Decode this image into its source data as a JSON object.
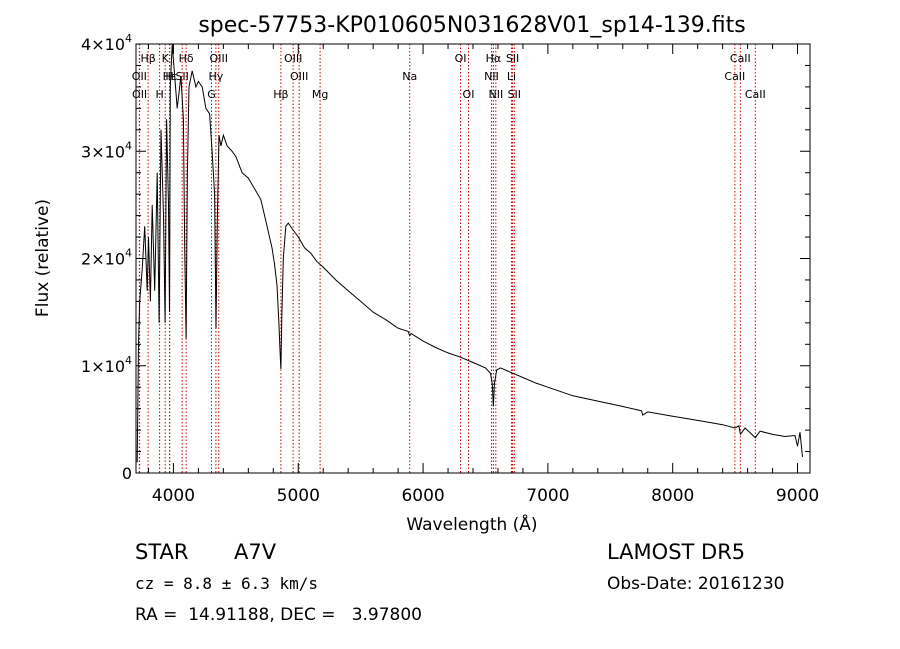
{
  "chart_data": {
    "type": "line",
    "title": "spec-57753-KP010605N031628V01_sp14-139.fits",
    "xlabel": "Wavelength (Å)",
    "ylabel": "Flux (relative)",
    "xlim": [
      3700,
      9100
    ],
    "ylim": [
      0,
      40000
    ],
    "x_ticks": [
      {
        "value": 4000,
        "label": "4000"
      },
      {
        "value": 5000,
        "label": "5000"
      },
      {
        "value": 6000,
        "label": "6000"
      },
      {
        "value": 7000,
        "label": "7000"
      },
      {
        "value": 8000,
        "label": "8000"
      },
      {
        "value": 9000,
        "label": "9000"
      }
    ],
    "y_ticks": [
      {
        "value": 0,
        "base": "0",
        "exp": ""
      },
      {
        "value": 10000,
        "base": "1×10",
        "exp": "4"
      },
      {
        "value": 20000,
        "base": "2×10",
        "exp": "4"
      },
      {
        "value": 30000,
        "base": "3×10",
        "exp": "4"
      },
      {
        "value": 40000,
        "base": "4×10",
        "exp": "4"
      }
    ],
    "series": [
      {
        "line_color": "#000000",
        "x": [
          3710,
          3720,
          3730,
          3750,
          3770,
          3790,
          3800,
          3815,
          3830,
          3850,
          3870,
          3885,
          3900,
          3920,
          3933,
          3945,
          3960,
          3968,
          3975,
          3990,
          4010,
          4030,
          4060,
          4080,
          4090,
          4101,
          4112,
          4125,
          4150,
          4180,
          4200,
          4230,
          4260,
          4290,
          4310,
          4330,
          4341,
          4352,
          4365,
          4380,
          4400,
          4430,
          4470,
          4500,
          4550,
          4600,
          4650,
          4700,
          4730,
          4760,
          4790,
          4810,
          4830,
          4845,
          4855,
          4861,
          4868,
          4880,
          4900,
          4920,
          4950,
          5000,
          5050,
          5100,
          5150,
          5200,
          5300,
          5400,
          5500,
          5600,
          5700,
          5800,
          5880,
          5893,
          5905,
          6000,
          6100,
          6200,
          6300,
          6400,
          6500,
          6540,
          6555,
          6563,
          6572,
          6590,
          6620,
          6700,
          6800,
          6900,
          7000,
          7200,
          7400,
          7600,
          7750,
          7760,
          7800,
          8000,
          8200,
          8400,
          8498,
          8530,
          8542,
          8580,
          8662,
          8700,
          8800,
          8900,
          8980,
          9000,
          9020,
          9040
        ],
        "y": [
          1000,
          12000,
          16000,
          19000,
          23000,
          17000,
          22000,
          16000,
          25000,
          17000,
          28000,
          14000,
          32000,
          24000,
          14000,
          33000,
          25000,
          15000,
          36000,
          40000,
          37000,
          34000,
          37000,
          33000,
          21000,
          12500,
          28000,
          36000,
          37500,
          36000,
          36500,
          36000,
          34000,
          33500,
          30000,
          26000,
          13500,
          24000,
          31500,
          30500,
          31500,
          30500,
          30000,
          29500,
          28000,
          27500,
          26500,
          25500,
          24000,
          22500,
          21000,
          19500,
          17500,
          14000,
          11000,
          9700,
          14500,
          20000,
          23000,
          23300,
          22800,
          22000,
          21000,
          20500,
          19700,
          19200,
          18000,
          17000,
          16000,
          15000,
          14300,
          13500,
          13200,
          12800,
          13000,
          12300,
          11700,
          11200,
          10800,
          10300,
          9800,
          9300,
          8300,
          6200,
          8400,
          9600,
          9800,
          9400,
          8900,
          8400,
          8000,
          7200,
          6700,
          6200,
          5800,
          5400,
          5700,
          5300,
          4900,
          4500,
          4200,
          4400,
          3600,
          4200,
          3300,
          3900,
          3600,
          3400,
          3500,
          2500,
          3800,
          1500
        ]
      }
    ],
    "line_labels": [
      {
        "label": "Hβ",
        "x": 3797,
        "row": 1
      },
      {
        "label": "OII",
        "x": 3727,
        "row": 2
      },
      {
        "label": "OII",
        "x": 3729,
        "row": 3
      },
      {
        "label": "K",
        "x": 3934,
        "row": 1
      },
      {
        "label": "H",
        "x": 3969,
        "row": 2
      },
      {
        "label": "Hε",
        "x": 3970,
        "row": 2
      },
      {
        "label": "SII",
        "x": 4070,
        "row": 2
      },
      {
        "label": "Hδ",
        "x": 4102,
        "row": 1
      },
      {
        "label": "H",
        "x": 3889,
        "row": 3
      },
      {
        "label": "OIII",
        "x": 4363,
        "row": 1
      },
      {
        "label": "Hγ",
        "x": 4340,
        "row": 2
      },
      {
        "label": "G",
        "x": 4305,
        "row": 3
      },
      {
        "label": "OIII",
        "x": 4959,
        "row": 1
      },
      {
        "label": "OIII",
        "x": 5007,
        "row": 2
      },
      {
        "label": "Hβ",
        "x": 4861,
        "row": 3
      },
      {
        "label": "Mg",
        "x": 5175,
        "row": 3
      },
      {
        "label": "Na",
        "x": 5893,
        "row": 2
      },
      {
        "label": "OI",
        "x": 6300,
        "row": 1
      },
      {
        "label": "OI",
        "x": 6364,
        "row": 3
      },
      {
        "label": "Hα",
        "x": 6563,
        "row": 1
      },
      {
        "label": "SII",
        "x": 6717,
        "row": 1
      },
      {
        "label": "NII",
        "x": 6548,
        "row": 2
      },
      {
        "label": "Li",
        "x": 6708,
        "row": 2
      },
      {
        "label": "NII",
        "x": 6583,
        "row": 3
      },
      {
        "label": "SII",
        "x": 6731,
        "row": 3
      },
      {
        "label": "CaII",
        "x": 8542,
        "row": 1
      },
      {
        "label": "CaII",
        "x": 8498,
        "row": 2
      },
      {
        "label": "CaII",
        "x": 8662,
        "row": 3
      }
    ],
    "marker_color": "#cc0000",
    "grid": false
  },
  "info": {
    "class_label": "STAR",
    "subclass": "A7V",
    "survey": "LAMOST DR5",
    "cz": "cz = 8.8 ± 6.3 km/s",
    "obs_date": "Obs-Date: 20161230",
    "coords": "RA =  14.91188, DEC =   3.97800"
  }
}
